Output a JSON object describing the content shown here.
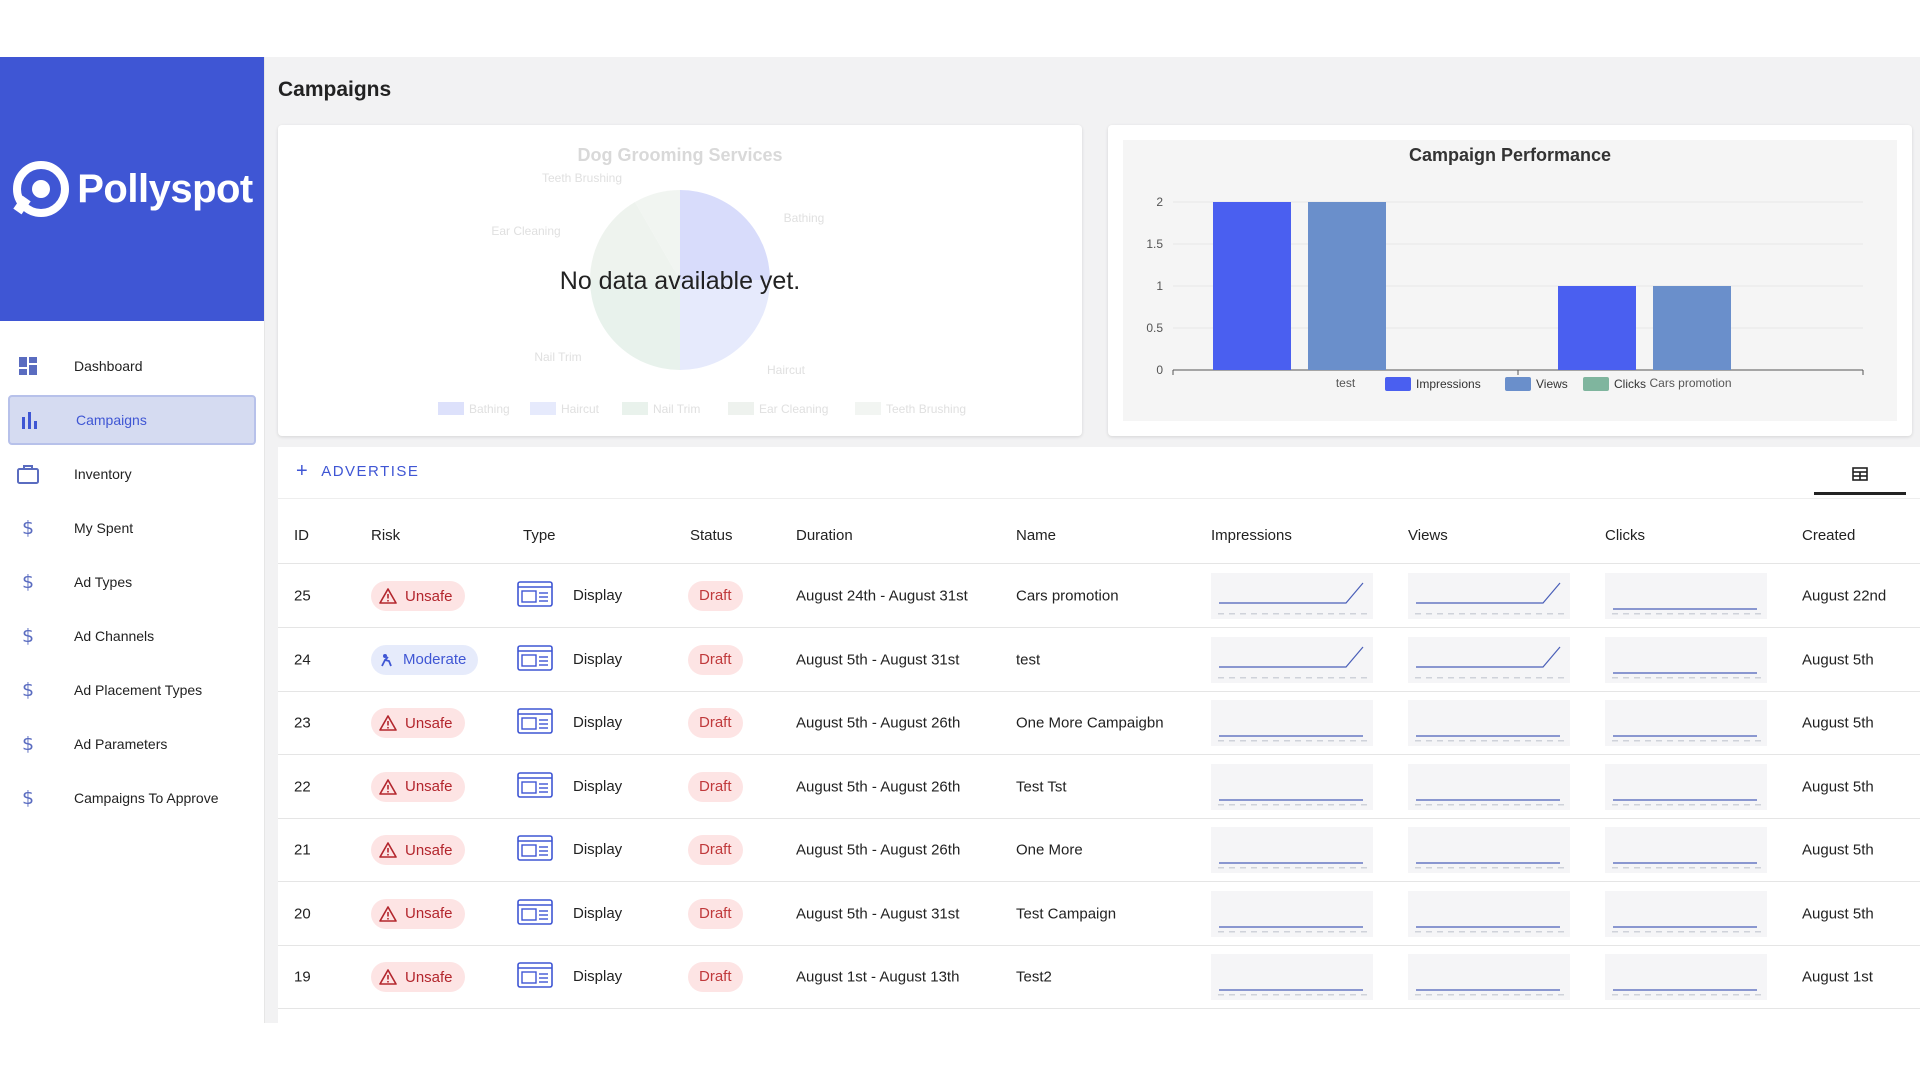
{
  "brand": {
    "name": "Pollyspot"
  },
  "sidebar": {
    "items": [
      {
        "label": "Dashboard",
        "icon": "dashboard-icon",
        "active": false
      },
      {
        "label": "Campaigns",
        "icon": "bar-chart-icon",
        "active": true
      },
      {
        "label": "Inventory",
        "icon": "briefcase-icon",
        "active": false
      },
      {
        "label": "My Spent",
        "icon": "dollar-icon",
        "active": false
      },
      {
        "label": "Ad Types",
        "icon": "dollar-icon",
        "active": false
      },
      {
        "label": "Ad Channels",
        "icon": "dollar-icon",
        "active": false
      },
      {
        "label": "Ad Placement Types",
        "icon": "dollar-icon",
        "active": false
      },
      {
        "label": "Ad Parameters",
        "icon": "dollar-icon",
        "active": false
      },
      {
        "label": "Campaigns To Approve",
        "icon": "dollar-icon",
        "active": false
      }
    ]
  },
  "page": {
    "title": "Campaigns"
  },
  "pie": {
    "title": "Dog Grooming Services",
    "no_data": "No data available yet.",
    "labels": [
      "Teeth Brushing",
      "Bathing",
      "Ear Cleaning",
      "Nail Trim",
      "Haircut"
    ],
    "legend": [
      "Bathing",
      "Haircut",
      "Nail Trim",
      "Ear Cleaning",
      "Teeth Brushing"
    ]
  },
  "chart_data": {
    "type": "bar",
    "title": "Campaign Performance",
    "categories": [
      "test",
      "Cars promotion"
    ],
    "series": [
      {
        "name": "Impressions",
        "values": [
          2,
          1
        ],
        "color": "#4a5ff0"
      },
      {
        "name": "Views",
        "values": [
          2,
          1
        ],
        "color": "#6a8fcb"
      },
      {
        "name": "Clicks",
        "values": [
          0,
          0
        ],
        "color": "#7fb59e"
      }
    ],
    "yticks": [
      "0",
      "0.5",
      "1",
      "1.5",
      "2"
    ],
    "ylim": [
      0,
      2
    ],
    "legend_position": "bottom",
    "grid": true
  },
  "toolbar": {
    "advertise_label": "ADVERTISE"
  },
  "table": {
    "columns": [
      "ID",
      "Risk",
      "Type",
      "Status",
      "Duration",
      "Name",
      "Impressions",
      "Views",
      "Clicks",
      "Created"
    ],
    "rows": [
      {
        "id": "25",
        "risk": "Unsafe",
        "type": "Display",
        "status": "Draft",
        "duration": "August 24th - August 31st",
        "name": "Cars promotion",
        "created": "August 22nd",
        "impressions_trend": "spike",
        "views_trend": "spike",
        "clicks_trend": "flat"
      },
      {
        "id": "24",
        "risk": "Moderate",
        "type": "Display",
        "status": "Draft",
        "duration": "August 5th - August 31st",
        "name": "test",
        "created": "August 5th",
        "impressions_trend": "spike",
        "views_trend": "spike",
        "clicks_trend": "flat"
      },
      {
        "id": "23",
        "risk": "Unsafe",
        "type": "Display",
        "status": "Draft",
        "duration": "August 5th - August 26th",
        "name": "One More Campaigbn",
        "created": "August 5th",
        "impressions_trend": "flat",
        "views_trend": "flat",
        "clicks_trend": "flat"
      },
      {
        "id": "22",
        "risk": "Unsafe",
        "type": "Display",
        "status": "Draft",
        "duration": "August 5th - August 26th",
        "name": "Test Tst",
        "created": "August 5th",
        "impressions_trend": "flat",
        "views_trend": "flat",
        "clicks_trend": "flat"
      },
      {
        "id": "21",
        "risk": "Unsafe",
        "type": "Display",
        "status": "Draft",
        "duration": "August 5th - August 26th",
        "name": "One More",
        "created": "August 5th",
        "impressions_trend": "flat",
        "views_trend": "flat",
        "clicks_trend": "flat"
      },
      {
        "id": "20",
        "risk": "Unsafe",
        "type": "Display",
        "status": "Draft",
        "duration": "August 5th - August 31st",
        "name": "Test Campaign",
        "created": "August 5th",
        "impressions_trend": "flat",
        "views_trend": "flat",
        "clicks_trend": "flat"
      },
      {
        "id": "19",
        "risk": "Unsafe",
        "type": "Display",
        "status": "Draft",
        "duration": "August 1st - August 13th",
        "name": "Test2",
        "created": "August 1st",
        "impressions_trend": "flat",
        "views_trend": "flat",
        "clicks_trend": "flat"
      }
    ]
  },
  "colors": {
    "accent": "#3f56d4",
    "danger": "#b3262d",
    "danger_bg": "#fde4e4"
  }
}
